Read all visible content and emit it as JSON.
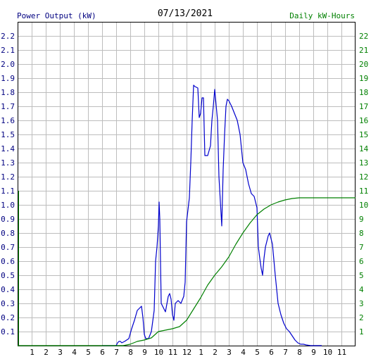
{
  "header": {
    "left_label": "Power Output (kW)",
    "center_label": "07/13/2021",
    "right_label": "Daily kW-Hours"
  },
  "colors": {
    "power": "#0000cc",
    "energy": "#008800",
    "grid": "#bdbdbd",
    "frame": "#000000",
    "left_text": "#000080",
    "right_text": "#008000",
    "center_text": "#000000",
    "background": "#ffffff"
  },
  "chart_data": {
    "type": "line",
    "title": "07/13/2021",
    "grid": true,
    "x_axis": {
      "range": [
        0,
        24
      ],
      "tick_positions": [
        1,
        2,
        3,
        4,
        5,
        6,
        7,
        8,
        9,
        10,
        11,
        12,
        13,
        14,
        15,
        16,
        17,
        18,
        19,
        20,
        21,
        22,
        23
      ],
      "tick_labels": [
        "1",
        "2",
        "3",
        "4",
        "5",
        "6",
        "7",
        "8",
        "9",
        "10",
        "11",
        "12",
        "1",
        "2",
        "3",
        "4",
        "5",
        "6",
        "7",
        "8",
        "9",
        "10",
        "11"
      ]
    },
    "y_left": {
      "label": "Power Output (kW)",
      "range": [
        0,
        2.3
      ],
      "ticks": [
        "0.1",
        "0.2",
        "0.3",
        "0.4",
        "0.5",
        "0.6",
        "0.7",
        "0.8",
        "0.9",
        "1.0",
        "1.1",
        "1.2",
        "1.3",
        "1.4",
        "1.5",
        "1.6",
        "1.7",
        "1.8",
        "1.9",
        "2.0",
        "2.1",
        "2.2"
      ]
    },
    "y_right": {
      "label": "Daily kW-Hours",
      "range": [
        0,
        23
      ],
      "ticks": [
        "1",
        "2",
        "3",
        "4",
        "5",
        "6",
        "7",
        "8",
        "9",
        "10",
        "11",
        "12",
        "13",
        "14",
        "15",
        "16",
        "17",
        "18",
        "19",
        "20",
        "21",
        "22"
      ]
    },
    "series": [
      {
        "name": "Power Output (kW)",
        "axis": "left",
        "color": "#0000cc",
        "x": [
          6.0,
          7.0,
          7.1,
          7.2,
          7.3,
          7.4,
          7.6,
          7.9,
          8.1,
          8.3,
          8.5,
          8.7,
          8.8,
          8.9,
          9.0,
          9.1,
          9.3,
          9.5,
          9.7,
          9.8,
          9.9,
          10.0,
          10.05,
          10.1,
          10.2,
          10.3,
          10.5,
          10.7,
          10.8,
          10.9,
          11.0,
          11.1,
          11.2,
          11.4,
          11.6,
          11.8,
          11.9,
          12.0,
          12.2,
          12.3,
          12.4,
          12.5,
          12.6,
          12.8,
          12.9,
          13.0,
          13.1,
          13.2,
          13.3,
          13.5,
          13.7,
          13.8,
          13.9,
          14.0,
          14.2,
          14.3,
          14.5,
          14.6,
          14.7,
          14.8,
          14.9,
          15.0,
          15.1,
          15.2,
          15.4,
          15.6,
          15.8,
          15.9,
          16.0,
          16.2,
          16.4,
          16.6,
          16.8,
          17.0,
          17.1,
          17.2,
          17.3,
          17.4,
          17.5,
          17.6,
          17.8,
          17.9,
          18.1,
          18.3,
          18.5,
          18.7,
          18.9,
          19.1,
          19.3,
          19.5,
          19.7,
          19.9,
          20.1,
          20.3,
          20.5,
          20.8,
          21.0,
          21.2,
          21.4,
          21.6
        ],
        "y": [
          0.0,
          0.0,
          0.02,
          0.03,
          0.03,
          0.02,
          0.03,
          0.05,
          0.12,
          0.18,
          0.25,
          0.27,
          0.28,
          0.2,
          0.08,
          0.05,
          0.05,
          0.1,
          0.25,
          0.6,
          0.7,
          0.85,
          1.02,
          0.9,
          0.3,
          0.28,
          0.24,
          0.35,
          0.37,
          0.33,
          0.22,
          0.18,
          0.3,
          0.32,
          0.3,
          0.35,
          0.45,
          0.88,
          1.05,
          1.3,
          1.6,
          1.85,
          1.84,
          1.83,
          1.62,
          1.65,
          1.76,
          1.76,
          1.35,
          1.35,
          1.42,
          1.6,
          1.7,
          1.82,
          1.6,
          1.2,
          0.85,
          1.25,
          1.5,
          1.7,
          1.75,
          1.74,
          1.72,
          1.7,
          1.65,
          1.6,
          1.5,
          1.4,
          1.3,
          1.25,
          1.15,
          1.08,
          1.06,
          0.98,
          0.7,
          0.62,
          0.55,
          0.5,
          0.62,
          0.7,
          0.78,
          0.8,
          0.72,
          0.5,
          0.3,
          0.22,
          0.16,
          0.12,
          0.1,
          0.07,
          0.04,
          0.02,
          0.01,
          0.01,
          0.005,
          0.0,
          0.0,
          0.0,
          0.0,
          0.0
        ]
      },
      {
        "name": "Daily kW-Hours",
        "axis": "right",
        "color": "#008000",
        "x": [
          0.0,
          7.5,
          8.0,
          8.5,
          9.0,
          9.5,
          10.0,
          10.5,
          11.0,
          11.5,
          12.0,
          12.5,
          13.0,
          13.5,
          14.0,
          14.5,
          15.0,
          15.5,
          16.0,
          16.5,
          17.0,
          17.5,
          18.0,
          18.5,
          19.0,
          19.5,
          20.0,
          21.0,
          22.0,
          23.0,
          24.0
        ],
        "y": [
          0.0,
          0.0,
          0.1,
          0.3,
          0.4,
          0.55,
          1.0,
          1.1,
          1.2,
          1.35,
          1.8,
          2.6,
          3.4,
          4.3,
          5.0,
          5.6,
          6.3,
          7.2,
          8.0,
          8.7,
          9.3,
          9.7,
          10.0,
          10.2,
          10.35,
          10.45,
          10.5,
          10.5,
          10.5,
          10.5,
          10.5
        ]
      }
    ]
  }
}
